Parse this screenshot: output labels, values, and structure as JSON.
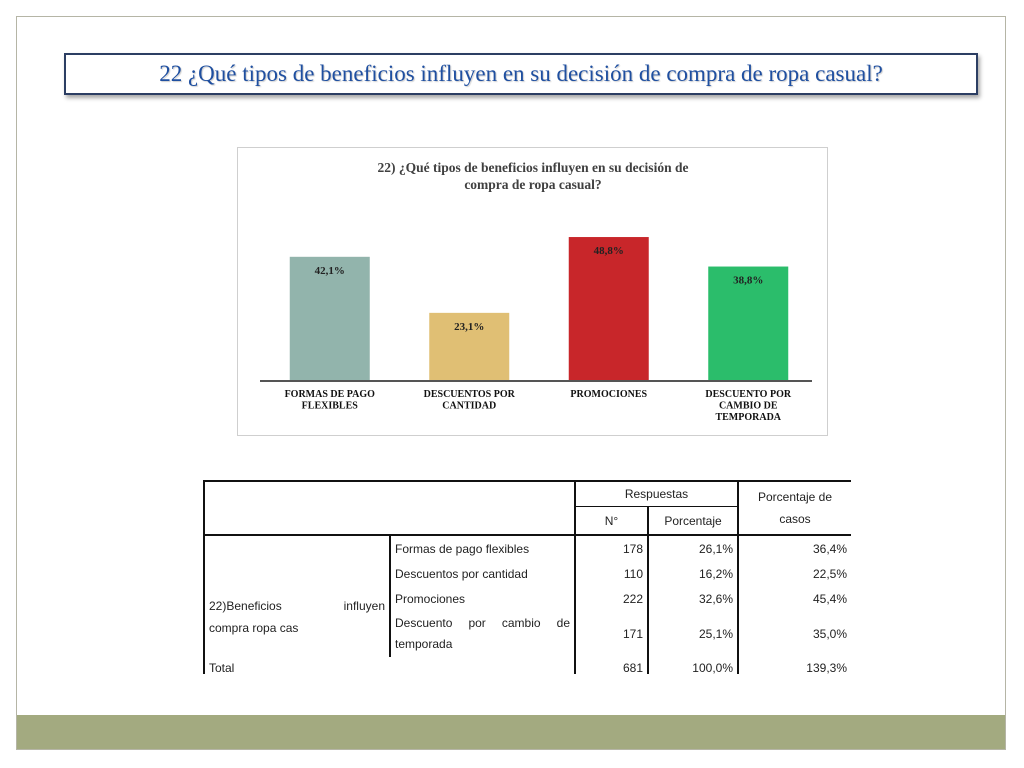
{
  "slide": {
    "title": "22 ¿Qué tipos de beneficios influyen en su decisión de compra de ropa casual?",
    "accent_color": "#1f4fa0",
    "footer_color": "#a3aa80"
  },
  "chart_data": {
    "type": "bar",
    "title_lines": [
      "22) ¿Qué tipos de beneficios influyen en su decisión de",
      "compra de ropa casual?"
    ],
    "categories": [
      [
        "FORMAS DE PAGO",
        "FLEXIBLES"
      ],
      [
        "DESCUENTOS POR",
        "CANTIDAD"
      ],
      [
        "PROMOCIONES"
      ],
      [
        "DESCUENTO POR",
        "CAMBIO DE",
        "TEMPORADA"
      ]
    ],
    "values": [
      42.1,
      23.1,
      48.8,
      38.8
    ],
    "value_labels": [
      "42,1%",
      "23,1%",
      "48,8%",
      "38,8%"
    ],
    "colors": [
      "#92b4ac",
      "#e0bf74",
      "#c8262a",
      "#2bbd6b"
    ],
    "ylim": [
      0,
      60
    ],
    "grid": false,
    "legend": "none"
  },
  "table": {
    "header": {
      "respuestas": "Respuestas",
      "porcentaje_casos": "Porcentaje de casos",
      "n": "N°",
      "porcentaje": "Porcentaje"
    },
    "row_group_label": {
      "word1": "22)Beneficios",
      "word2": "influyen",
      "line2": "compra ropa cas"
    },
    "rows": [
      {
        "label": "Formas de pago flexibles",
        "n": "178",
        "porcentaje": "26,1%",
        "casos": "36,4%"
      },
      {
        "label": "Descuentos por cantidad",
        "n": "110",
        "porcentaje": "16,2%",
        "casos": "22,5%"
      },
      {
        "label": "Promociones",
        "n": "222",
        "porcentaje": "32,6%",
        "casos": "45,4%"
      },
      {
        "label_line1": "Descuento por cambio de",
        "label_line2": "temporada",
        "n": "171",
        "porcentaje": "25,1%",
        "casos": "35,0%"
      }
    ],
    "total": {
      "label": "Total",
      "n": "681",
      "porcentaje": "100,0%",
      "casos": "139,3%"
    }
  }
}
